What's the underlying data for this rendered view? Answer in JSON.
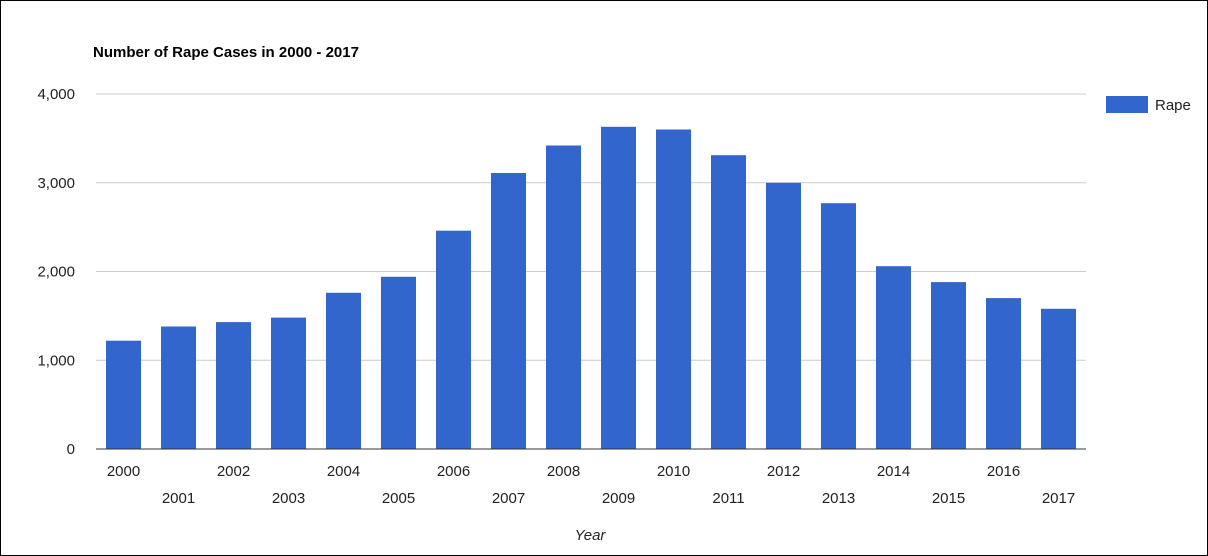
{
  "chart_data": {
    "type": "bar",
    "title": "Number of Rape Cases in 2000 - 2017",
    "xlabel": "Year",
    "ylabel": "",
    "ylim": [
      0,
      4000
    ],
    "yticks": [
      "0",
      "1,000",
      "2,000",
      "3,000",
      "4,000"
    ],
    "categories": [
      "2000",
      "2001",
      "2002",
      "2003",
      "2004",
      "2005",
      "2006",
      "2007",
      "2008",
      "2009",
      "2010",
      "2011",
      "2012",
      "2013",
      "2014",
      "2015",
      "2016",
      "2017"
    ],
    "series": [
      {
        "name": "Rape",
        "color": "#3366cc",
        "values": [
          1220,
          1380,
          1430,
          1480,
          1760,
          1940,
          2460,
          3110,
          3420,
          3630,
          3600,
          3310,
          3000,
          2770,
          2060,
          1880,
          1700,
          1580
        ]
      }
    ],
    "grid": true,
    "legend_position": "right"
  }
}
